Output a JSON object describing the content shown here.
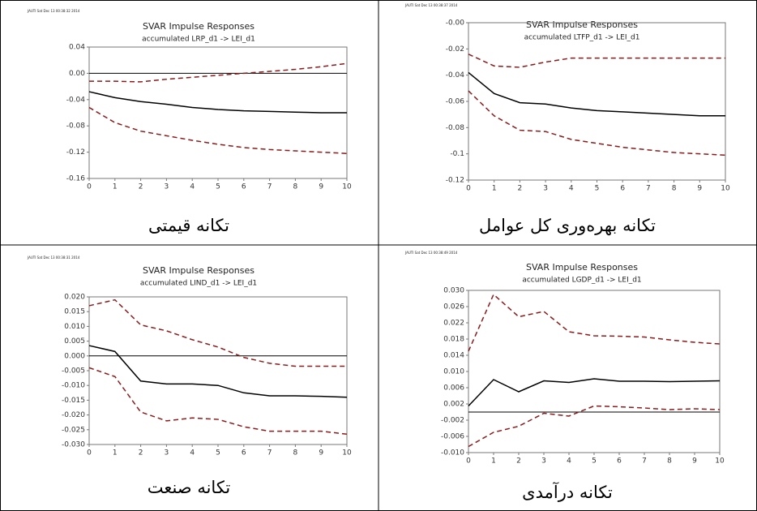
{
  "chart_data": [
    {
      "type": "line",
      "stamp": "JAUTI Sat Dec 13 00:38:32 2014",
      "title": "SVAR Impulse Responses",
      "subtitle": "accumulated LRP_d1 -> LEI_d1",
      "caption": "تکانه قیمتی",
      "x": [
        0,
        1,
        2,
        3,
        4,
        5,
        6,
        7,
        8,
        9,
        10
      ],
      "xlim": [
        0,
        10
      ],
      "xticks": [
        0,
        1,
        2,
        3,
        4,
        5,
        6,
        7,
        8,
        9,
        10
      ],
      "ylim": [
        -0.16,
        0.04
      ],
      "yticks": [
        -0.16,
        -0.12,
        -0.08,
        -0.04,
        {
          "value": 0,
          "label": "0.00"
        },
        0.04
      ],
      "zero_line": true,
      "series": [
        {
          "color": "#000000",
          "style": "solid",
          "values": [
            -0.028,
            -0.037,
            -0.043,
            -0.047,
            -0.052,
            -0.055,
            -0.057,
            -0.058,
            -0.059,
            -0.06,
            -0.06
          ]
        },
        {
          "color": "#8b1a1a",
          "style": "dashed",
          "values": [
            -0.052,
            -0.075,
            -0.088,
            -0.095,
            -0.102,
            -0.108,
            -0.113,
            -0.116,
            -0.118,
            -0.12,
            -0.122
          ]
        },
        {
          "color": "#8b1a1a",
          "style": "dashed",
          "values": [
            -0.012,
            -0.012,
            -0.013,
            -0.009,
            -0.006,
            -0.003,
            0.0,
            0.003,
            0.006,
            0.01,
            0.015
          ]
        }
      ]
    },
    {
      "type": "line",
      "stamp": "JAUTI Sat Dec 13 00:38:37 2014",
      "title": "SVAR Impulse Responses",
      "subtitle": "accumulated LTFP_d1 -> LEI_d1",
      "caption": "تکانه بهره‌وری کل عوامل",
      "x": [
        0,
        1,
        2,
        3,
        4,
        5,
        6,
        7,
        8,
        9,
        10
      ],
      "xlim": [
        0,
        10
      ],
      "xticks": [
        0,
        1,
        2,
        3,
        4,
        5,
        6,
        7,
        8,
        9,
        10
      ],
      "ylim": [
        -0.12,
        0.0
      ],
      "yticks": [
        -0.12,
        -0.1,
        -0.08,
        -0.06,
        -0.04,
        -0.02,
        {
          "value": 0,
          "label": "-0.00"
        }
      ],
      "zero_line": false,
      "series": [
        {
          "color": "#000000",
          "style": "solid",
          "values": [
            -0.038,
            -0.054,
            -0.061,
            -0.062,
            -0.065,
            -0.067,
            -0.068,
            -0.069,
            -0.07,
            -0.071,
            -0.071
          ]
        },
        {
          "color": "#8b1a1a",
          "style": "dashed",
          "values": [
            -0.052,
            -0.071,
            -0.082,
            -0.083,
            -0.089,
            -0.092,
            -0.095,
            -0.097,
            -0.099,
            -0.1,
            -0.101
          ]
        },
        {
          "color": "#8b1a1a",
          "style": "dashed",
          "values": [
            -0.024,
            -0.033,
            -0.034,
            -0.03,
            -0.027,
            -0.027,
            -0.027,
            -0.027,
            -0.027,
            -0.027,
            -0.027
          ]
        }
      ]
    },
    {
      "type": "line",
      "stamp": "JAUTI Sat Dec 13 00:38:31 2014",
      "title": "SVAR Impulse Responses",
      "subtitle": "accumulated LIND_d1 -> LEI_d1",
      "caption": "تکانه صنعت",
      "x": [
        0,
        1,
        2,
        3,
        4,
        5,
        6,
        7,
        8,
        9,
        10
      ],
      "xlim": [
        0,
        10
      ],
      "xticks": [
        0,
        1,
        2,
        3,
        4,
        5,
        6,
        7,
        8,
        9,
        10
      ],
      "ylim": [
        -0.03,
        0.02
      ],
      "yticks": [
        {
          "value": -0.03,
          "label": "-0.030"
        },
        -0.025,
        {
          "value": -0.02,
          "label": "-0.020"
        },
        -0.015,
        {
          "value": -0.01,
          "label": "-0.010"
        },
        -0.005,
        {
          "value": 0,
          "label": "0.000"
        },
        0.005,
        {
          "value": 0.01,
          "label": "0.010"
        },
        0.015,
        {
          "value": 0.02,
          "label": "0.020"
        }
      ],
      "zero_line": true,
      "series": [
        {
          "color": "#000000",
          "style": "solid",
          "values": [
            0.0035,
            0.0015,
            -0.0085,
            -0.0095,
            -0.0095,
            -0.01,
            -0.0125,
            -0.0135,
            -0.0135,
            -0.0137,
            -0.014
          ]
        },
        {
          "color": "#8b1a1a",
          "style": "dashed",
          "values": [
            -0.004,
            -0.007,
            -0.019,
            -0.022,
            -0.021,
            -0.0215,
            -0.024,
            -0.0255,
            -0.0255,
            -0.0255,
            -0.0265
          ]
        },
        {
          "color": "#8b1a1a",
          "style": "dashed",
          "values": [
            0.017,
            0.019,
            0.0105,
            0.0085,
            0.0055,
            0.003,
            -0.0005,
            -0.0025,
            -0.0035,
            -0.0035,
            -0.0035
          ]
        }
      ]
    },
    {
      "type": "line",
      "stamp": "JAUTI Sat Dec 13 00:38:49 2014",
      "title": "SVAR Impulse Responses",
      "subtitle": "accumulated LGDP_d1 -> LEI_d1",
      "caption": "تکانه درآمدی",
      "x": [
        0,
        1,
        2,
        3,
        4,
        5,
        6,
        7,
        8,
        9,
        10
      ],
      "xlim": [
        0,
        10
      ],
      "xticks": [
        0,
        1,
        2,
        3,
        4,
        5,
        6,
        7,
        8,
        9,
        10
      ],
      "ylim": [
        -0.01,
        0.03
      ],
      "yticks": [
        {
          "value": -0.01,
          "label": "-0.010"
        },
        -0.006,
        -0.002,
        0.002,
        0.006,
        {
          "value": 0.01,
          "label": "0.010"
        },
        0.014,
        0.018,
        0.022,
        0.026,
        {
          "value": 0.03,
          "label": "0.030"
        }
      ],
      "zero_line": true,
      "series": [
        {
          "color": "#000000",
          "style": "solid",
          "values": [
            0.0015,
            0.008,
            0.005,
            0.0077,
            0.0073,
            0.0082,
            0.0076,
            0.0076,
            0.0075,
            0.0076,
            0.0077
          ]
        },
        {
          "color": "#8b1a1a",
          "style": "dashed",
          "values": [
            -0.0085,
            -0.005,
            -0.0035,
            -0.0003,
            -0.001,
            0.0015,
            0.0013,
            0.001,
            0.0006,
            0.0008,
            0.0006
          ]
        },
        {
          "color": "#8b1a1a",
          "style": "dashed",
          "values": [
            0.015,
            0.029,
            0.0235,
            0.0248,
            0.0198,
            0.0188,
            0.0187,
            0.0185,
            0.0178,
            0.0172,
            0.0168
          ]
        }
      ]
    }
  ]
}
